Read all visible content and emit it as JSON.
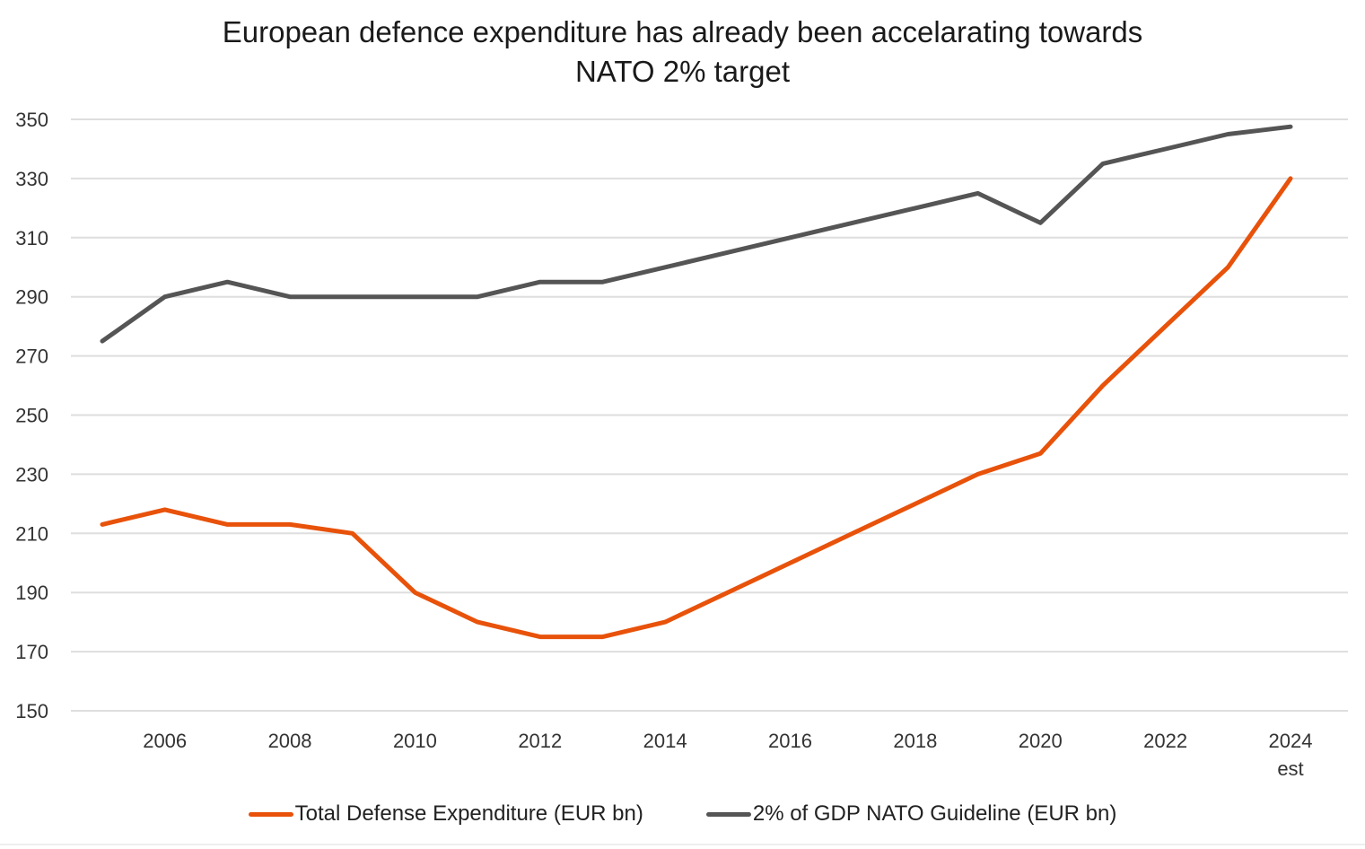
{
  "chart_data": {
    "type": "line",
    "title": "European defence expenditure has already been accelarating towards NATO 2% target",
    "title_lines": [
      "European defence expenditure has already been accelarating towards",
      "NATO 2% target"
    ],
    "xlabel": "",
    "ylabel": "",
    "x": [
      2005,
      2006,
      2007,
      2008,
      2009,
      2010,
      2011,
      2012,
      2013,
      2014,
      2015,
      2016,
      2017,
      2018,
      2019,
      2020,
      2021,
      2022,
      2023,
      2024
    ],
    "x_tick_labels": [
      {
        "x": 2006,
        "label": "2006"
      },
      {
        "x": 2008,
        "label": "2008"
      },
      {
        "x": 2010,
        "label": "2010"
      },
      {
        "x": 2012,
        "label": "2012"
      },
      {
        "x": 2014,
        "label": "2014"
      },
      {
        "x": 2016,
        "label": "2016"
      },
      {
        "x": 2018,
        "label": "2018"
      },
      {
        "x": 2020,
        "label": "2020"
      },
      {
        "x": 2022,
        "label": "2022"
      },
      {
        "x": 2024,
        "label": "2024",
        "sublabel": "est"
      }
    ],
    "y_ticks": [
      150,
      170,
      190,
      210,
      230,
      250,
      270,
      290,
      310,
      330,
      350
    ],
    "ylim": [
      150,
      350
    ],
    "xlim": [
      2005,
      2024
    ],
    "grid": "horizontal",
    "legend_position": "bottom",
    "series": [
      {
        "name": "Total Defense Expenditure (EUR bn)",
        "color": "#E8520A",
        "values": [
          213,
          218,
          213,
          213,
          210,
          190,
          180,
          175,
          175,
          180,
          190,
          200,
          210,
          220,
          230,
          237,
          260,
          280,
          300,
          330
        ]
      },
      {
        "name": "2% of GDP NATO Guideline (EUR bn)",
        "color": "#555555",
        "values": [
          275,
          290,
          295,
          290,
          290,
          290,
          290,
          295,
          295,
          300,
          305,
          310,
          315,
          320,
          325,
          315,
          335,
          340,
          345,
          347.5
        ]
      }
    ]
  }
}
